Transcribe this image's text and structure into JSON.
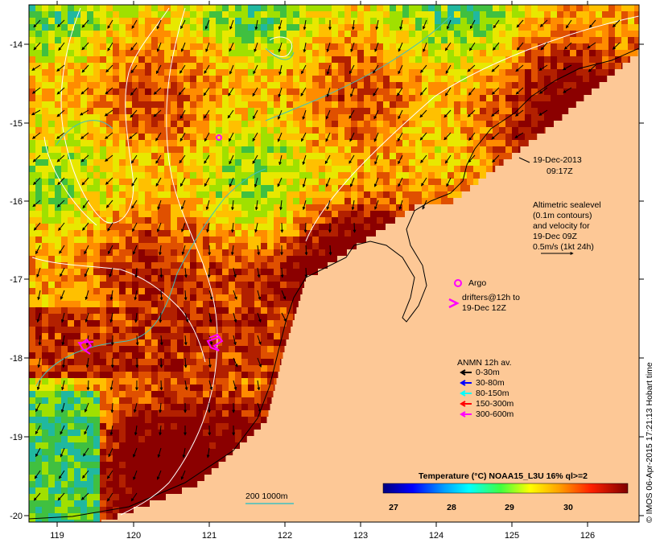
{
  "map": {
    "date": "19-Dec-2013",
    "time": "09:17Z",
    "altimetry_note": [
      "Altimetric sealevel",
      "(0.1m contours)",
      "and velocity for",
      "19-Dec 09Z",
      "0.5m/s (1kt 24h)"
    ],
    "argo_label": "Argo",
    "drifters_label": [
      "drifters@12h to",
      "19-Dec 12Z"
    ],
    "anmn_title": "ANMN 12h av.",
    "anmn_depths": [
      {
        "label": "0-30m",
        "color": "#000000"
      },
      {
        "label": "30-80m",
        "color": "#0000ff"
      },
      {
        "label": "80-150m",
        "color": "#00ffff"
      },
      {
        "label": "150-300m",
        "color": "#ff0000"
      },
      {
        "label": "300-600m",
        "color": "#ff00ff"
      }
    ],
    "colorbar_title": "Temperature (°C) NOAA15_L3U 16% ql>=2",
    "colorbar_ticks": [
      "27",
      "28",
      "29",
      "30"
    ],
    "isobath_label": "200  1000m",
    "credit": "© IMOS 06-Apr-2015 17:21:13 Hobart time",
    "lon_ticks": [
      "119",
      "120",
      "121",
      "122",
      "123",
      "124",
      "125",
      "126"
    ],
    "lat_ticks": [
      "-14",
      "-15",
      "-16",
      "-17",
      "-18",
      "-19",
      "-20"
    ],
    "colors": {
      "land": "#fdc896",
      "hot": "#8b0000",
      "drifter": "#ff00ff",
      "isobath": "#40c0c0"
    }
  }
}
